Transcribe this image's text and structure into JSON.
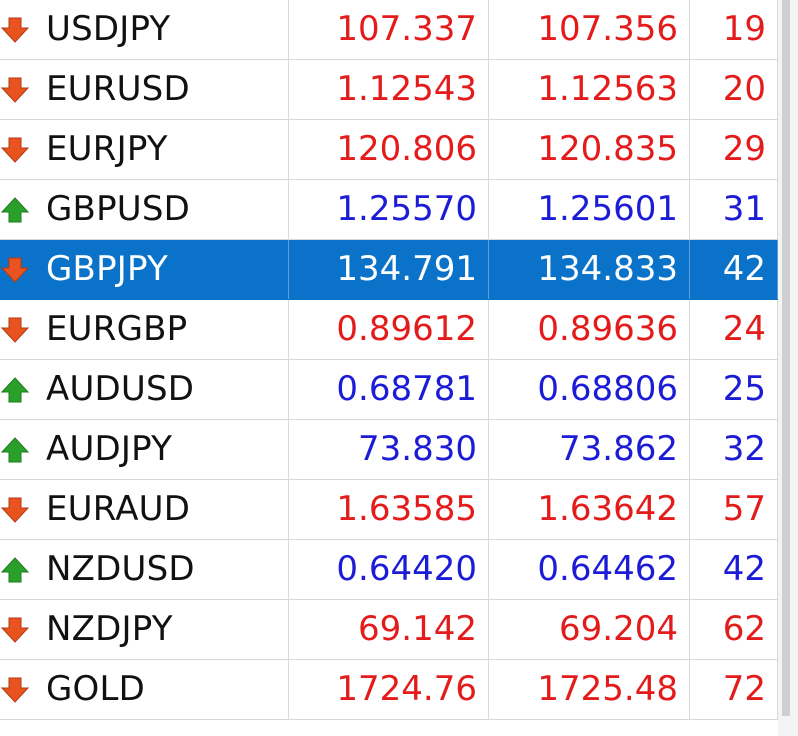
{
  "market_watch": {
    "rows": [
      {
        "symbol": "USDJPY",
        "bid": "107.337",
        "ask": "107.356",
        "spread": "19",
        "direction": "down-arrow-icon"
      },
      {
        "symbol": "EURUSD",
        "bid": "1.12543",
        "ask": "1.12563",
        "spread": "20",
        "direction": "down-arrow-icon"
      },
      {
        "symbol": "EURJPY",
        "bid": "120.806",
        "ask": "120.835",
        "spread": "29",
        "direction": "down-arrow-icon"
      },
      {
        "symbol": "GBPUSD",
        "bid": "1.25570",
        "ask": "1.25601",
        "spread": "31",
        "direction": "up-arrow-icon"
      },
      {
        "symbol": "GBPJPY",
        "bid": "134.791",
        "ask": "134.833",
        "spread": "42",
        "direction": "down-arrow-icon"
      },
      {
        "symbol": "EURGBP",
        "bid": "0.89612",
        "ask": "0.89636",
        "spread": "24",
        "direction": "down-arrow-icon"
      },
      {
        "symbol": "AUDUSD",
        "bid": "0.68781",
        "ask": "0.68806",
        "spread": "25",
        "direction": "up-arrow-icon"
      },
      {
        "symbol": "AUDJPY",
        "bid": "73.830",
        "ask": "73.862",
        "spread": "32",
        "direction": "up-arrow-icon"
      },
      {
        "symbol": "EURAUD",
        "bid": "1.63585",
        "ask": "1.63642",
        "spread": "57",
        "direction": "down-arrow-icon"
      },
      {
        "symbol": "NZDUSD",
        "bid": "0.64420",
        "ask": "0.64462",
        "spread": "42",
        "direction": "up-arrow-icon"
      },
      {
        "symbol": "NZDJPY",
        "bid": "69.142",
        "ask": "69.204",
        "spread": "62",
        "direction": "down-arrow-icon"
      },
      {
        "symbol": "GOLD",
        "bid": "1724.76",
        "ask": "1725.48",
        "spread": "72",
        "direction": "down-arrow-icon"
      }
    ],
    "selected_symbol": "GBPJPY"
  },
  "colors": {
    "down": "#e41b1b",
    "up": "#1c1cd6",
    "selection": "#0a73c9",
    "arrow_down": "#e8531f",
    "arrow_up": "#2aa02a"
  }
}
